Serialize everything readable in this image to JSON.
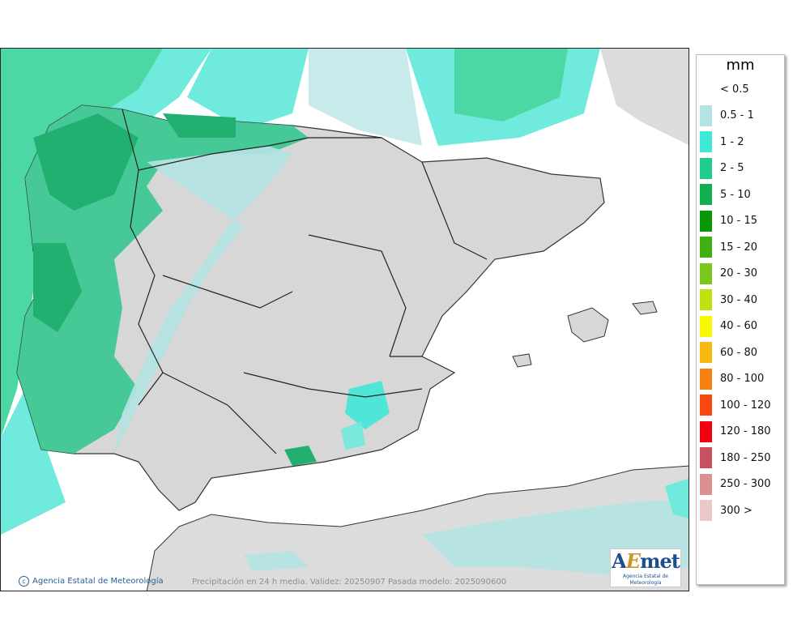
{
  "map": {
    "credit": "Agencia Estatal de Meteorología",
    "caption": "Precipitación en 24 h media. Validez: 20250907 Pasada modelo: 2025090600",
    "logo": {
      "brand_a": "A",
      "brand_e": "E",
      "brand_rest": "met",
      "subtitle": "Agencia Estatal de Meteorología"
    }
  },
  "legend": {
    "unit": "mm",
    "items": [
      {
        "label": "< 0.5",
        "color": "#ffffff"
      },
      {
        "label": "0.5 - 1",
        "color": "#b4e3e3"
      },
      {
        "label": "1 - 2",
        "color": "#40e8d8"
      },
      {
        "label": "2 - 5",
        "color": "#1ecc8c"
      },
      {
        "label": "5 - 10",
        "color": "#0fb050"
      },
      {
        "label": "10 - 15",
        "color": "#069806"
      },
      {
        "label": "15 - 20",
        "color": "#40b010"
      },
      {
        "label": "20 - 30",
        "color": "#7cc81a"
      },
      {
        "label": "30 - 40",
        "color": "#c0e010"
      },
      {
        "label": "40 - 60",
        "color": "#f8f800"
      },
      {
        "label": "60 - 80",
        "color": "#f8b810"
      },
      {
        "label": "80 - 100",
        "color": "#f88010"
      },
      {
        "label": "100 - 120",
        "color": "#f84810"
      },
      {
        "label": "120 - 180",
        "color": "#f00010"
      },
      {
        "label": "180 - 250",
        "color": "#c85060"
      },
      {
        "label": "250 - 300",
        "color": "#dc9090"
      },
      {
        "label": "300 >",
        "color": "#ecc8c8"
      }
    ]
  }
}
